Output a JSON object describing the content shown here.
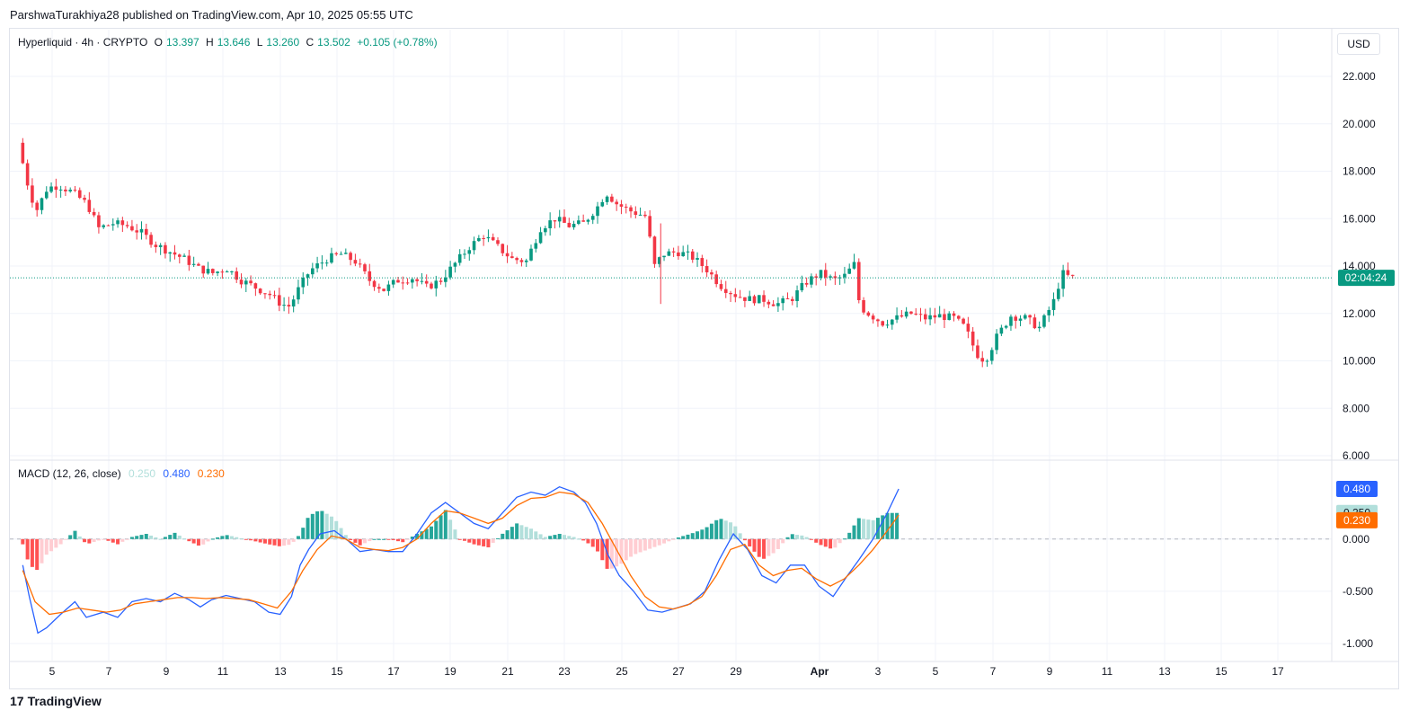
{
  "publisher_line": "ParshwaTurakhiya28 published on TradingView.com, Apr 10, 2025 05:55 UTC",
  "legend": {
    "symbol": "Hyperliquid · 4h · CRYPTO",
    "open_label": "O",
    "open": "13.397",
    "high_label": "H",
    "high": "13.646",
    "low_label": "L",
    "low": "13.260",
    "close_label": "C",
    "close": "13.502",
    "change": "+0.105 (+0.78%)"
  },
  "macd_legend": {
    "title": "MACD (12, 26, close)",
    "hist": "0.250",
    "macd": "0.480",
    "signal": "0.230"
  },
  "currency_button": "USD",
  "countdown": "02:04:24",
  "footer_brand": "TradingView",
  "footer_logo": "17",
  "colors": {
    "up": "#089981",
    "down": "#f23645",
    "hist_up_strong": "#26a69a",
    "hist_up_weak": "#b2dfdb",
    "hist_down_strong": "#ff5252",
    "hist_down_weak": "#ffcdd2",
    "macd_line": "#2962ff",
    "signal_line": "#ff6d00",
    "grid": "#f0f3fa"
  },
  "chart_data": [
    {
      "type": "candlestick",
      "title": "Hyperliquid · 4h · CRYPTO",
      "ylim": [
        6,
        23
      ],
      "y_ticks": [
        "22.000",
        "20.000",
        "18.000",
        "16.000",
        "14.000",
        "12.000",
        "10.000",
        "8.000",
        "6.000"
      ],
      "x_ticks": [
        "5",
        "7",
        "9",
        "11",
        "13",
        "15",
        "17",
        "19",
        "21",
        "23",
        "25",
        "27",
        "29",
        "Apr",
        "3",
        "5",
        "7",
        "9",
        "11",
        "13",
        "15",
        "17"
      ],
      "x_range_days": [
        3.95,
        18.2
      ],
      "last_price": 13.502,
      "anchors": [
        [
          3.97,
          19.2
        ],
        [
          4.3,
          17.5
        ],
        [
          4.6,
          16.3
        ],
        [
          5.0,
          17.3
        ],
        [
          5.4,
          17.4
        ],
        [
          5.9,
          17.1
        ],
        [
          6.4,
          16.6
        ],
        [
          6.8,
          15.6
        ],
        [
          7.3,
          15.8
        ],
        [
          7.8,
          15.7
        ],
        [
          8.3,
          15.4
        ],
        [
          8.8,
          14.9
        ],
        [
          9.3,
          14.6
        ],
        [
          9.8,
          14.3
        ],
        [
          10.3,
          13.9
        ],
        [
          10.8,
          13.7
        ],
        [
          11.3,
          13.9
        ],
        [
          11.8,
          13.4
        ],
        [
          12.3,
          13.1
        ],
        [
          12.8,
          12.8
        ],
        [
          13.2,
          12.4
        ],
        [
          13.5,
          12.3
        ],
        [
          13.8,
          13.0
        ],
        [
          14.2,
          13.8
        ],
        [
          14.8,
          14.3
        ],
        [
          15.3,
          14.5
        ],
        [
          15.8,
          14.2
        ],
        [
          16.3,
          13.4
        ],
        [
          16.8,
          13.0
        ],
        [
          17.3,
          13.4
        ],
        [
          17.8,
          13.5
        ],
        [
          18.3,
          13.1
        ],
        [
          18.8,
          13.4
        ],
        [
          19.3,
          14.1
        ],
        [
          19.8,
          14.8
        ],
        [
          20.3,
          15.3
        ],
        [
          20.8,
          14.8
        ],
        [
          21.3,
          14.3
        ],
        [
          21.8,
          14.2
        ],
        [
          22.3,
          15.6
        ],
        [
          22.8,
          16.0
        ],
        [
          23.3,
          15.7
        ],
        [
          23.8,
          15.8
        ],
        [
          24.3,
          16.5
        ],
        [
          24.6,
          17.1
        ],
        [
          25.0,
          16.6
        ],
        [
          25.5,
          16.3
        ],
        [
          26.0,
          16.1
        ],
        [
          26.3,
          14.0
        ],
        [
          26.6,
          14.5
        ],
        [
          27.1,
          14.6
        ],
        [
          27.6,
          14.4
        ],
        [
          28.1,
          13.9
        ],
        [
          28.6,
          13.2
        ],
        [
          29.1,
          12.8
        ],
        [
          29.6,
          12.6
        ],
        [
          30.1,
          12.6
        ],
        [
          30.6,
          12.4
        ],
        [
          31.1,
          12.6
        ],
        [
          31.6,
          13.3
        ],
        [
          32.1,
          13.7
        ],
        [
          32.6,
          13.4
        ],
        [
          33.0,
          13.6
        ],
        [
          33.3,
          14.1
        ],
        [
          33.5,
          12.3
        ],
        [
          33.8,
          12.0
        ],
        [
          34.3,
          11.6
        ],
        [
          34.8,
          11.8
        ],
        [
          35.3,
          12.0
        ],
        [
          35.8,
          11.8
        ],
        [
          36.3,
          11.9
        ],
        [
          36.8,
          11.8
        ],
        [
          37.2,
          11.4
        ],
        [
          37.6,
          10.3
        ],
        [
          37.9,
          10.0
        ],
        [
          38.3,
          11.0
        ],
        [
          38.8,
          11.9
        ],
        [
          39.3,
          11.8
        ],
        [
          39.8,
          11.4
        ],
        [
          40.3,
          12.5
        ],
        [
          40.6,
          13.7
        ],
        [
          40.9,
          13.5
        ]
      ]
    },
    {
      "type": "line",
      "title": "MACD (12, 26, close)",
      "ylim": [
        -1.1,
        0.55
      ],
      "y_ticks": [
        "0.000",
        "-0.500",
        "-1.000"
      ],
      "series": [
        {
          "name": "MACD",
          "points": [
            [
              3.97,
              -0.25
            ],
            [
              4.2,
              -0.55
            ],
            [
              4.5,
              -0.9
            ],
            [
              4.8,
              -0.85
            ],
            [
              5.3,
              -0.72
            ],
            [
              5.8,
              -0.6
            ],
            [
              6.2,
              -0.75
            ],
            [
              6.8,
              -0.7
            ],
            [
              7.3,
              -0.75
            ],
            [
              7.8,
              -0.6
            ],
            [
              8.3,
              -0.57
            ],
            [
              8.8,
              -0.6
            ],
            [
              9.3,
              -0.52
            ],
            [
              9.8,
              -0.58
            ],
            [
              10.2,
              -0.65
            ],
            [
              10.6,
              -0.58
            ],
            [
              11.1,
              -0.54
            ],
            [
              11.6,
              -0.57
            ],
            [
              12.1,
              -0.6
            ],
            [
              12.6,
              -0.7
            ],
            [
              13.0,
              -0.72
            ],
            [
              13.4,
              -0.55
            ],
            [
              13.7,
              -0.25
            ],
            [
              14.0,
              -0.1
            ],
            [
              14.4,
              0.05
            ],
            [
              14.9,
              0.08
            ],
            [
              15.4,
              -0.02
            ],
            [
              15.8,
              -0.12
            ],
            [
              16.3,
              -0.1
            ],
            [
              16.8,
              -0.12
            ],
            [
              17.3,
              -0.12
            ],
            [
              17.8,
              0.05
            ],
            [
              18.3,
              0.25
            ],
            [
              18.8,
              0.35
            ],
            [
              19.3,
              0.25
            ],
            [
              19.8,
              0.15
            ],
            [
              20.3,
              0.1
            ],
            [
              20.8,
              0.25
            ],
            [
              21.3,
              0.4
            ],
            [
              21.8,
              0.45
            ],
            [
              22.3,
              0.42
            ],
            [
              22.8,
              0.5
            ],
            [
              23.3,
              0.45
            ],
            [
              23.7,
              0.35
            ],
            [
              24.1,
              0.15
            ],
            [
              24.5,
              -0.15
            ],
            [
              24.9,
              -0.35
            ],
            [
              25.4,
              -0.5
            ],
            [
              25.9,
              -0.68
            ],
            [
              26.4,
              -0.7
            ],
            [
              26.9,
              -0.66
            ],
            [
              27.4,
              -0.62
            ],
            [
              27.9,
              -0.5
            ],
            [
              28.4,
              -0.2
            ],
            [
              28.9,
              0.05
            ],
            [
              29.4,
              -0.1
            ],
            [
              29.9,
              -0.35
            ],
            [
              30.4,
              -0.42
            ],
            [
              30.9,
              -0.25
            ],
            [
              31.4,
              -0.25
            ],
            [
              31.9,
              -0.45
            ],
            [
              32.4,
              -0.55
            ],
            [
              32.9,
              -0.35
            ],
            [
              33.3,
              -0.2
            ],
            [
              33.8,
              0.0
            ],
            [
              34.3,
              0.25
            ],
            [
              34.7,
              0.48
            ]
          ]
        },
        {
          "name": "Signal",
          "points": [
            [
              3.97,
              -0.3
            ],
            [
              4.4,
              -0.6
            ],
            [
              4.9,
              -0.72
            ],
            [
              5.4,
              -0.7
            ],
            [
              5.9,
              -0.66
            ],
            [
              6.4,
              -0.68
            ],
            [
              6.9,
              -0.7
            ],
            [
              7.4,
              -0.68
            ],
            [
              7.9,
              -0.62
            ],
            [
              8.4,
              -0.6
            ],
            [
              8.9,
              -0.58
            ],
            [
              9.4,
              -0.56
            ],
            [
              9.9,
              -0.56
            ],
            [
              10.4,
              -0.57
            ],
            [
              10.9,
              -0.56
            ],
            [
              11.4,
              -0.57
            ],
            [
              11.9,
              -0.58
            ],
            [
              12.4,
              -0.62
            ],
            [
              12.9,
              -0.66
            ],
            [
              13.4,
              -0.5
            ],
            [
              13.8,
              -0.3
            ],
            [
              14.3,
              -0.1
            ],
            [
              14.8,
              0.03
            ],
            [
              15.3,
              0.0
            ],
            [
              15.8,
              -0.08
            ],
            [
              16.3,
              -0.1
            ],
            [
              16.8,
              -0.11
            ],
            [
              17.3,
              -0.08
            ],
            [
              17.8,
              0.0
            ],
            [
              18.3,
              0.15
            ],
            [
              18.8,
              0.27
            ],
            [
              19.3,
              0.25
            ],
            [
              19.8,
              0.2
            ],
            [
              20.3,
              0.15
            ],
            [
              20.8,
              0.2
            ],
            [
              21.3,
              0.32
            ],
            [
              21.8,
              0.39
            ],
            [
              22.3,
              0.4
            ],
            [
              22.8,
              0.45
            ],
            [
              23.3,
              0.43
            ],
            [
              23.8,
              0.35
            ],
            [
              24.3,
              0.15
            ],
            [
              24.8,
              -0.1
            ],
            [
              25.3,
              -0.35
            ],
            [
              25.8,
              -0.55
            ],
            [
              26.3,
              -0.65
            ],
            [
              26.8,
              -0.67
            ],
            [
              27.3,
              -0.63
            ],
            [
              27.8,
              -0.55
            ],
            [
              28.3,
              -0.35
            ],
            [
              28.8,
              -0.1
            ],
            [
              29.3,
              -0.05
            ],
            [
              29.8,
              -0.25
            ],
            [
              30.3,
              -0.35
            ],
            [
              30.8,
              -0.3
            ],
            [
              31.3,
              -0.28
            ],
            [
              31.8,
              -0.38
            ],
            [
              32.3,
              -0.45
            ],
            [
              32.8,
              -0.38
            ],
            [
              33.3,
              -0.25
            ],
            [
              33.8,
              -0.1
            ],
            [
              34.3,
              0.08
            ],
            [
              34.7,
              0.23
            ]
          ]
        },
        {
          "name": "Histogram",
          "points": [
            [
              3.97,
              -0.05
            ],
            [
              4.2,
              -0.25
            ],
            [
              4.5,
              -0.3
            ],
            [
              4.8,
              -0.15
            ],
            [
              5.3,
              -0.05
            ],
            [
              5.8,
              0.08
            ],
            [
              6.2,
              -0.05
            ],
            [
              6.8,
              0.0
            ],
            [
              7.3,
              -0.05
            ],
            [
              7.8,
              0.02
            ],
            [
              8.3,
              0.05
            ],
            [
              8.8,
              0.0
            ],
            [
              9.3,
              0.06
            ],
            [
              9.8,
              -0.02
            ],
            [
              10.2,
              -0.07
            ],
            [
              10.6,
              0.0
            ],
            [
              11.1,
              0.04
            ],
            [
              11.6,
              0.01
            ],
            [
              12.1,
              -0.02
            ],
            [
              12.6,
              -0.05
            ],
            [
              13.0,
              -0.07
            ],
            [
              13.4,
              -0.05
            ],
            [
              13.7,
              0.05
            ],
            [
              14.0,
              0.22
            ],
            [
              14.4,
              0.28
            ],
            [
              14.9,
              0.2
            ],
            [
              15.4,
              0.0
            ],
            [
              15.8,
              -0.06
            ],
            [
              16.3,
              0.0
            ],
            [
              16.8,
              0.0
            ],
            [
              17.3,
              -0.03
            ],
            [
              17.8,
              0.05
            ],
            [
              18.3,
              0.12
            ],
            [
              18.8,
              0.28
            ],
            [
              19.3,
              0.0
            ],
            [
              19.8,
              -0.05
            ],
            [
              20.3,
              -0.08
            ],
            [
              20.8,
              0.05
            ],
            [
              21.3,
              0.15
            ],
            [
              21.8,
              0.1
            ],
            [
              22.3,
              0.02
            ],
            [
              22.8,
              0.05
            ],
            [
              23.3,
              0.02
            ],
            [
              23.7,
              -0.02
            ],
            [
              24.1,
              -0.1
            ],
            [
              24.5,
              -0.3
            ],
            [
              24.9,
              -0.25
            ],
            [
              25.4,
              -0.15
            ],
            [
              25.9,
              -0.1
            ],
            [
              26.4,
              -0.05
            ],
            [
              26.9,
              0.01
            ],
            [
              27.4,
              0.05
            ],
            [
              27.9,
              0.1
            ],
            [
              28.4,
              0.2
            ],
            [
              28.9,
              0.15
            ],
            [
              29.4,
              -0.05
            ],
            [
              29.9,
              -0.2
            ],
            [
              30.4,
              -0.12
            ],
            [
              30.9,
              0.05
            ],
            [
              31.4,
              0.03
            ],
            [
              31.9,
              -0.05
            ],
            [
              32.4,
              -0.1
            ],
            [
              32.9,
              0.03
            ],
            [
              33.3,
              0.2
            ],
            [
              33.8,
              0.18
            ],
            [
              34.3,
              0.25
            ],
            [
              34.7,
              0.25
            ]
          ]
        }
      ]
    }
  ]
}
